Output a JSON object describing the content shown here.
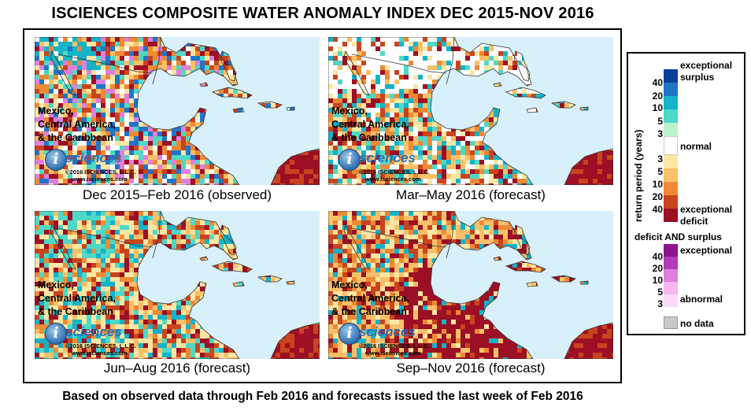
{
  "title": "ISCIENCES COMPOSITE WATER ANOMALY INDEX DEC 2015-NOV 2016",
  "footer": "Based on observed data through Feb 2016 and forecasts issued the last week of Feb 2016",
  "panels": [
    {
      "caption": "Dec 2015–Feb 2016 (observed)",
      "region": [
        "Mexico,",
        "Central America,",
        "& the Caribbean"
      ]
    },
    {
      "caption": "Mar–May 2016 (forecast)",
      "region": [
        "Mexico,",
        "Central America,",
        "& the Caribbean"
      ]
    },
    {
      "caption": "Jun–Aug 2016 (forecast)",
      "region": [
        "Mexico,",
        "Central America,",
        "& the Caribbean"
      ]
    },
    {
      "caption": "Sep–Nov 2016 (forecast)",
      "region": [
        "Mexico,",
        "Central America,",
        "& the Caribbean"
      ]
    }
  ],
  "logo": {
    "mark": "i",
    "word": "sciences",
    "copyright": "©2016 ISCIENCES, L.L.C.",
    "url": "www.isciences.com"
  },
  "legend": {
    "axis_label": "return period (years)",
    "exceptional_surplus": [
      "exceptional",
      "surplus"
    ],
    "normal": "normal",
    "exceptional_deficit": [
      "exceptional",
      "deficit"
    ],
    "surplus_ticks": [
      "40",
      "20",
      "10",
      "5",
      "3"
    ],
    "deficit_ticks": [
      "3",
      "5",
      "10",
      "20",
      "40"
    ],
    "both_title": "deficit AND surplus",
    "both_exceptional": "exceptional",
    "both_abnormal": "abnormal",
    "both_ticks": [
      "40",
      "20",
      "10",
      "5",
      "3"
    ],
    "no_data": "no data",
    "colors": {
      "ocean": "#d8f0fa",
      "surplus": [
        "#0b3e9c",
        "#1f75c8",
        "#14b3c9",
        "#4fd8c6",
        "#bdf2cf"
      ],
      "normal": "#ffffff",
      "deficit": [
        "#fbe6a4",
        "#f8c068",
        "#ee8a35",
        "#c9441e",
        "#9c0f24"
      ],
      "both": [
        "#8c148c",
        "#b13ab8",
        "#e07fdc",
        "#f6b6ee",
        "#fcd9f7"
      ],
      "no_data": "#c8c8c8"
    }
  }
}
